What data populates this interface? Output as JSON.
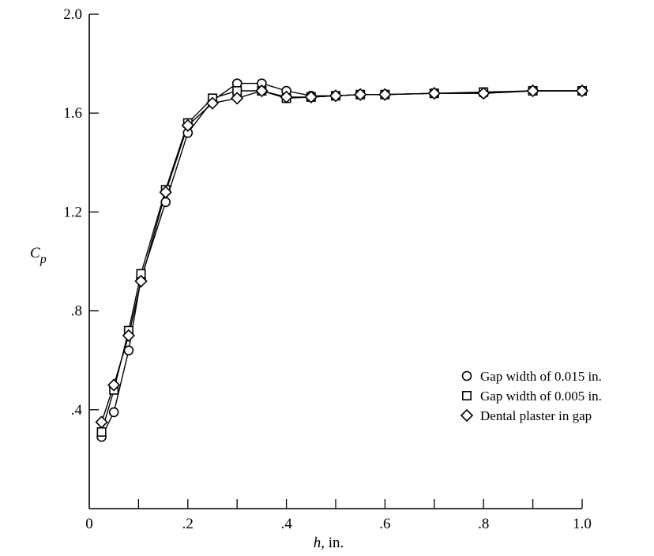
{
  "chart_data": {
    "type": "line",
    "xlabel_var": "h",
    "xlabel_unit": ", in.",
    "ylabel_var": "C",
    "ylabel_sub": "p",
    "xlim": [
      0,
      1.0
    ],
    "ylim": [
      0,
      2.0
    ],
    "x_ticks": [
      0,
      0.1,
      0.2,
      0.3,
      0.4,
      0.5,
      0.6,
      0.7,
      0.8,
      0.9,
      1.0
    ],
    "x_tick_labels": [
      {
        "value": 0,
        "label": "0"
      },
      {
        "value": 0.2,
        "label": ".2"
      },
      {
        "value": 0.4,
        "label": ".4"
      },
      {
        "value": 0.6,
        "label": ".6"
      },
      {
        "value": 0.8,
        "label": ".8"
      },
      {
        "value": 1.0,
        "label": "1.0"
      }
    ],
    "y_ticks": [
      0,
      0.4,
      0.8,
      1.2,
      1.6,
      2.0
    ],
    "y_tick_labels": [
      {
        "value": 0.4,
        "label": ".4"
      },
      {
        "value": 0.8,
        "label": ".8"
      },
      {
        "value": 1.2,
        "label": "1.2"
      },
      {
        "value": 1.6,
        "label": "1.6"
      },
      {
        "value": 2.0,
        "label": "2.0"
      }
    ],
    "grid": false,
    "legend_position": "bottom-right",
    "series": [
      {
        "name": "Gap width of 0.015 in.",
        "marker": "circle",
        "x": [
          0.025,
          0.05,
          0.08,
          0.105,
          0.155,
          0.2,
          0.25,
          0.3,
          0.35,
          0.4,
          0.45,
          0.5,
          0.55,
          0.6,
          0.7,
          0.8,
          0.9,
          1.0
        ],
        "y": [
          0.29,
          0.39,
          0.64,
          0.93,
          1.24,
          1.52,
          1.65,
          1.72,
          1.72,
          1.69,
          1.67,
          1.67,
          1.675,
          1.675,
          1.68,
          1.68,
          1.69,
          1.69
        ]
      },
      {
        "name": "Gap width of 0.005 in.",
        "marker": "square",
        "x": [
          0.025,
          0.05,
          0.08,
          0.105,
          0.155,
          0.2,
          0.25,
          0.3,
          0.35,
          0.4,
          0.45,
          0.5,
          0.55,
          0.6,
          0.7,
          0.8,
          0.9,
          1.0
        ],
        "y": [
          0.31,
          0.48,
          0.72,
          0.95,
          1.29,
          1.56,
          1.66,
          1.69,
          1.69,
          1.66,
          1.665,
          1.67,
          1.675,
          1.675,
          1.68,
          1.685,
          1.69,
          1.69
        ]
      },
      {
        "name": "Dental plaster in gap",
        "marker": "diamond",
        "x": [
          0.025,
          0.05,
          0.08,
          0.105,
          0.155,
          0.2,
          0.25,
          0.3,
          0.35,
          0.4,
          0.45,
          0.5,
          0.55,
          0.6,
          0.7,
          0.8,
          0.9,
          1.0
        ],
        "y": [
          0.35,
          0.5,
          0.7,
          0.92,
          1.28,
          1.55,
          1.64,
          1.66,
          1.69,
          1.665,
          1.665,
          1.67,
          1.675,
          1.675,
          1.68,
          1.68,
          1.69,
          1.69
        ]
      }
    ]
  }
}
